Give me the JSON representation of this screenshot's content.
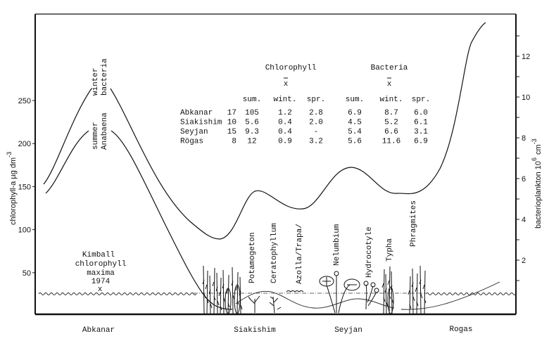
{
  "chart_data": {
    "type": "line",
    "title": "",
    "left_axis": {
      "label": "chlorophyll-a µg dm",
      "label_exp": "-3",
      "ticks": [
        "50",
        "100",
        "150",
        "200",
        "250"
      ],
      "ylim": [
        0,
        290
      ]
    },
    "right_axis": {
      "label": "bacterioplankton 10",
      "label_exp1": "6",
      "label_unit": "cm",
      "label_exp2": "-3",
      "ticks": [
        "2",
        "4",
        "6",
        "8",
        "10",
        "12"
      ],
      "ylim": [
        0,
        14
      ]
    },
    "x_categories": [
      "Abkanar",
      "Siakishim",
      "Seyjan",
      "Rogas"
    ],
    "series": [
      {
        "name": "winter bacteria",
        "label_line1": "winter",
        "label_line2": "bacteria",
        "axis": "right",
        "values_at_sites": [
          10.4,
          5.4,
          6.6,
          12.7
        ]
      },
      {
        "name": "summer Anabaena",
        "label_line1": "summer",
        "label_line2": "Anabaena",
        "axis": "left",
        "values_at_sites": [
          216,
          0,
          0,
          0
        ]
      }
    ],
    "annotations": {
      "kimball": [
        "Kimball",
        "chlorophyll",
        "maxima",
        "1974"
      ],
      "kimball_marker": "x",
      "plants": [
        "Potamogeton",
        "Ceratophyllum",
        "Azolla/Trapa/",
        "Nelumbium",
        "Hydrocotyle",
        "Typha",
        "Phragmites"
      ]
    },
    "table": {
      "group_headers": [
        "Chlorophyll",
        "Bacteria"
      ],
      "mean_symbol": "x",
      "columns": [
        "sum.",
        "wint.",
        "spr.",
        "sum.",
        "wint.",
        "spr."
      ],
      "rows": [
        {
          "site": "Abkanar",
          "n": "17",
          "values": [
            "105",
            "1.2",
            "2.8",
            "6.9",
            "8.7",
            "6.0"
          ]
        },
        {
          "site": "Siakishim",
          "n": "10",
          "values": [
            "5.6",
            "0.4",
            "2.0",
            "4.5",
            "5.2",
            "6.1"
          ]
        },
        {
          "site": "Seyjan",
          "n": "15",
          "values": [
            "9.3",
            "0.4",
            "-",
            "5.4",
            "6.6",
            "3.1"
          ]
        },
        {
          "site": "Rögas",
          "n": "8",
          "values": [
            "12",
            "0.9",
            "3.2",
            "5.6",
            "11.6",
            "6.9"
          ]
        }
      ]
    },
    "grid": false
  }
}
